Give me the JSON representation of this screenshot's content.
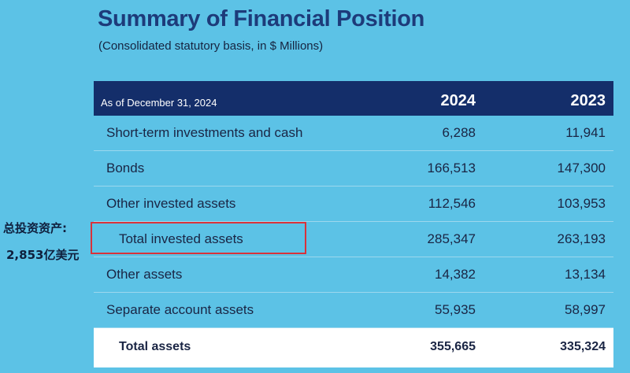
{
  "title": "Summary of Financial Position",
  "subtitle": "(Consolidated statutory basis, in $ Millions)",
  "table": {
    "as_of": "As of December 31, 2024",
    "years": [
      "2024",
      "2023"
    ],
    "rows": [
      {
        "label": "Short-term investments and cash",
        "v2024": "6,288",
        "v2023": "11,941"
      },
      {
        "label": "Bonds",
        "v2024": "166,513",
        "v2023": "147,300"
      },
      {
        "label": "Other invested assets",
        "v2024": "112,546",
        "v2023": "103,953"
      },
      {
        "label": "Total invested assets",
        "v2024": "285,347",
        "v2023": "263,193"
      },
      {
        "label": "Other assets",
        "v2024": "14,382",
        "v2023": "13,134"
      },
      {
        "label": "Separate account assets",
        "v2024": "55,935",
        "v2023": "58,997"
      }
    ],
    "total": {
      "label": "Total assets",
      "v2024": "355,665",
      "v2023": "335,324"
    }
  },
  "annotation": {
    "line1": "总投资资产:",
    "line2": "2,853亿美元",
    "highlight_color": "#d9323a"
  }
}
